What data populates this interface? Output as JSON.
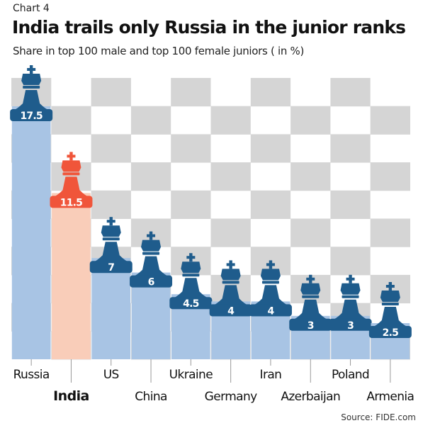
{
  "kicker": "Chart 4",
  "title": "India trails only Russia in the junior ranks",
  "subtitle": "Share in top 100 male and top 100 female juniors ( in %)",
  "source": "Source: FIDE.com",
  "colors": {
    "bar": "#a8c4e4",
    "highlight_bar": "#f9cdb9",
    "piece": "#1f5c8c",
    "highlight_piece": "#f0553a",
    "check": "#d5d5d5"
  },
  "chart_data": {
    "type": "bar",
    "title": "India trails only Russia in the junior ranks",
    "ylabel": "Share in top 100 male and top 100 female juniors (%)",
    "categories": [
      "Russia",
      "India",
      "US",
      "China",
      "Ukraine",
      "Germany",
      "Iran",
      "Azerbaijan",
      "Poland",
      "Armenia"
    ],
    "values": [
      17.5,
      11.5,
      7,
      6,
      4.5,
      4,
      4,
      3,
      3,
      2.5
    ],
    "value_labels": [
      "17.5",
      "11.5",
      "7",
      "6",
      "4.5",
      "4",
      "4",
      "3",
      "3",
      "2.5"
    ],
    "highlight": "India",
    "ylim": [
      0,
      17.5
    ]
  }
}
